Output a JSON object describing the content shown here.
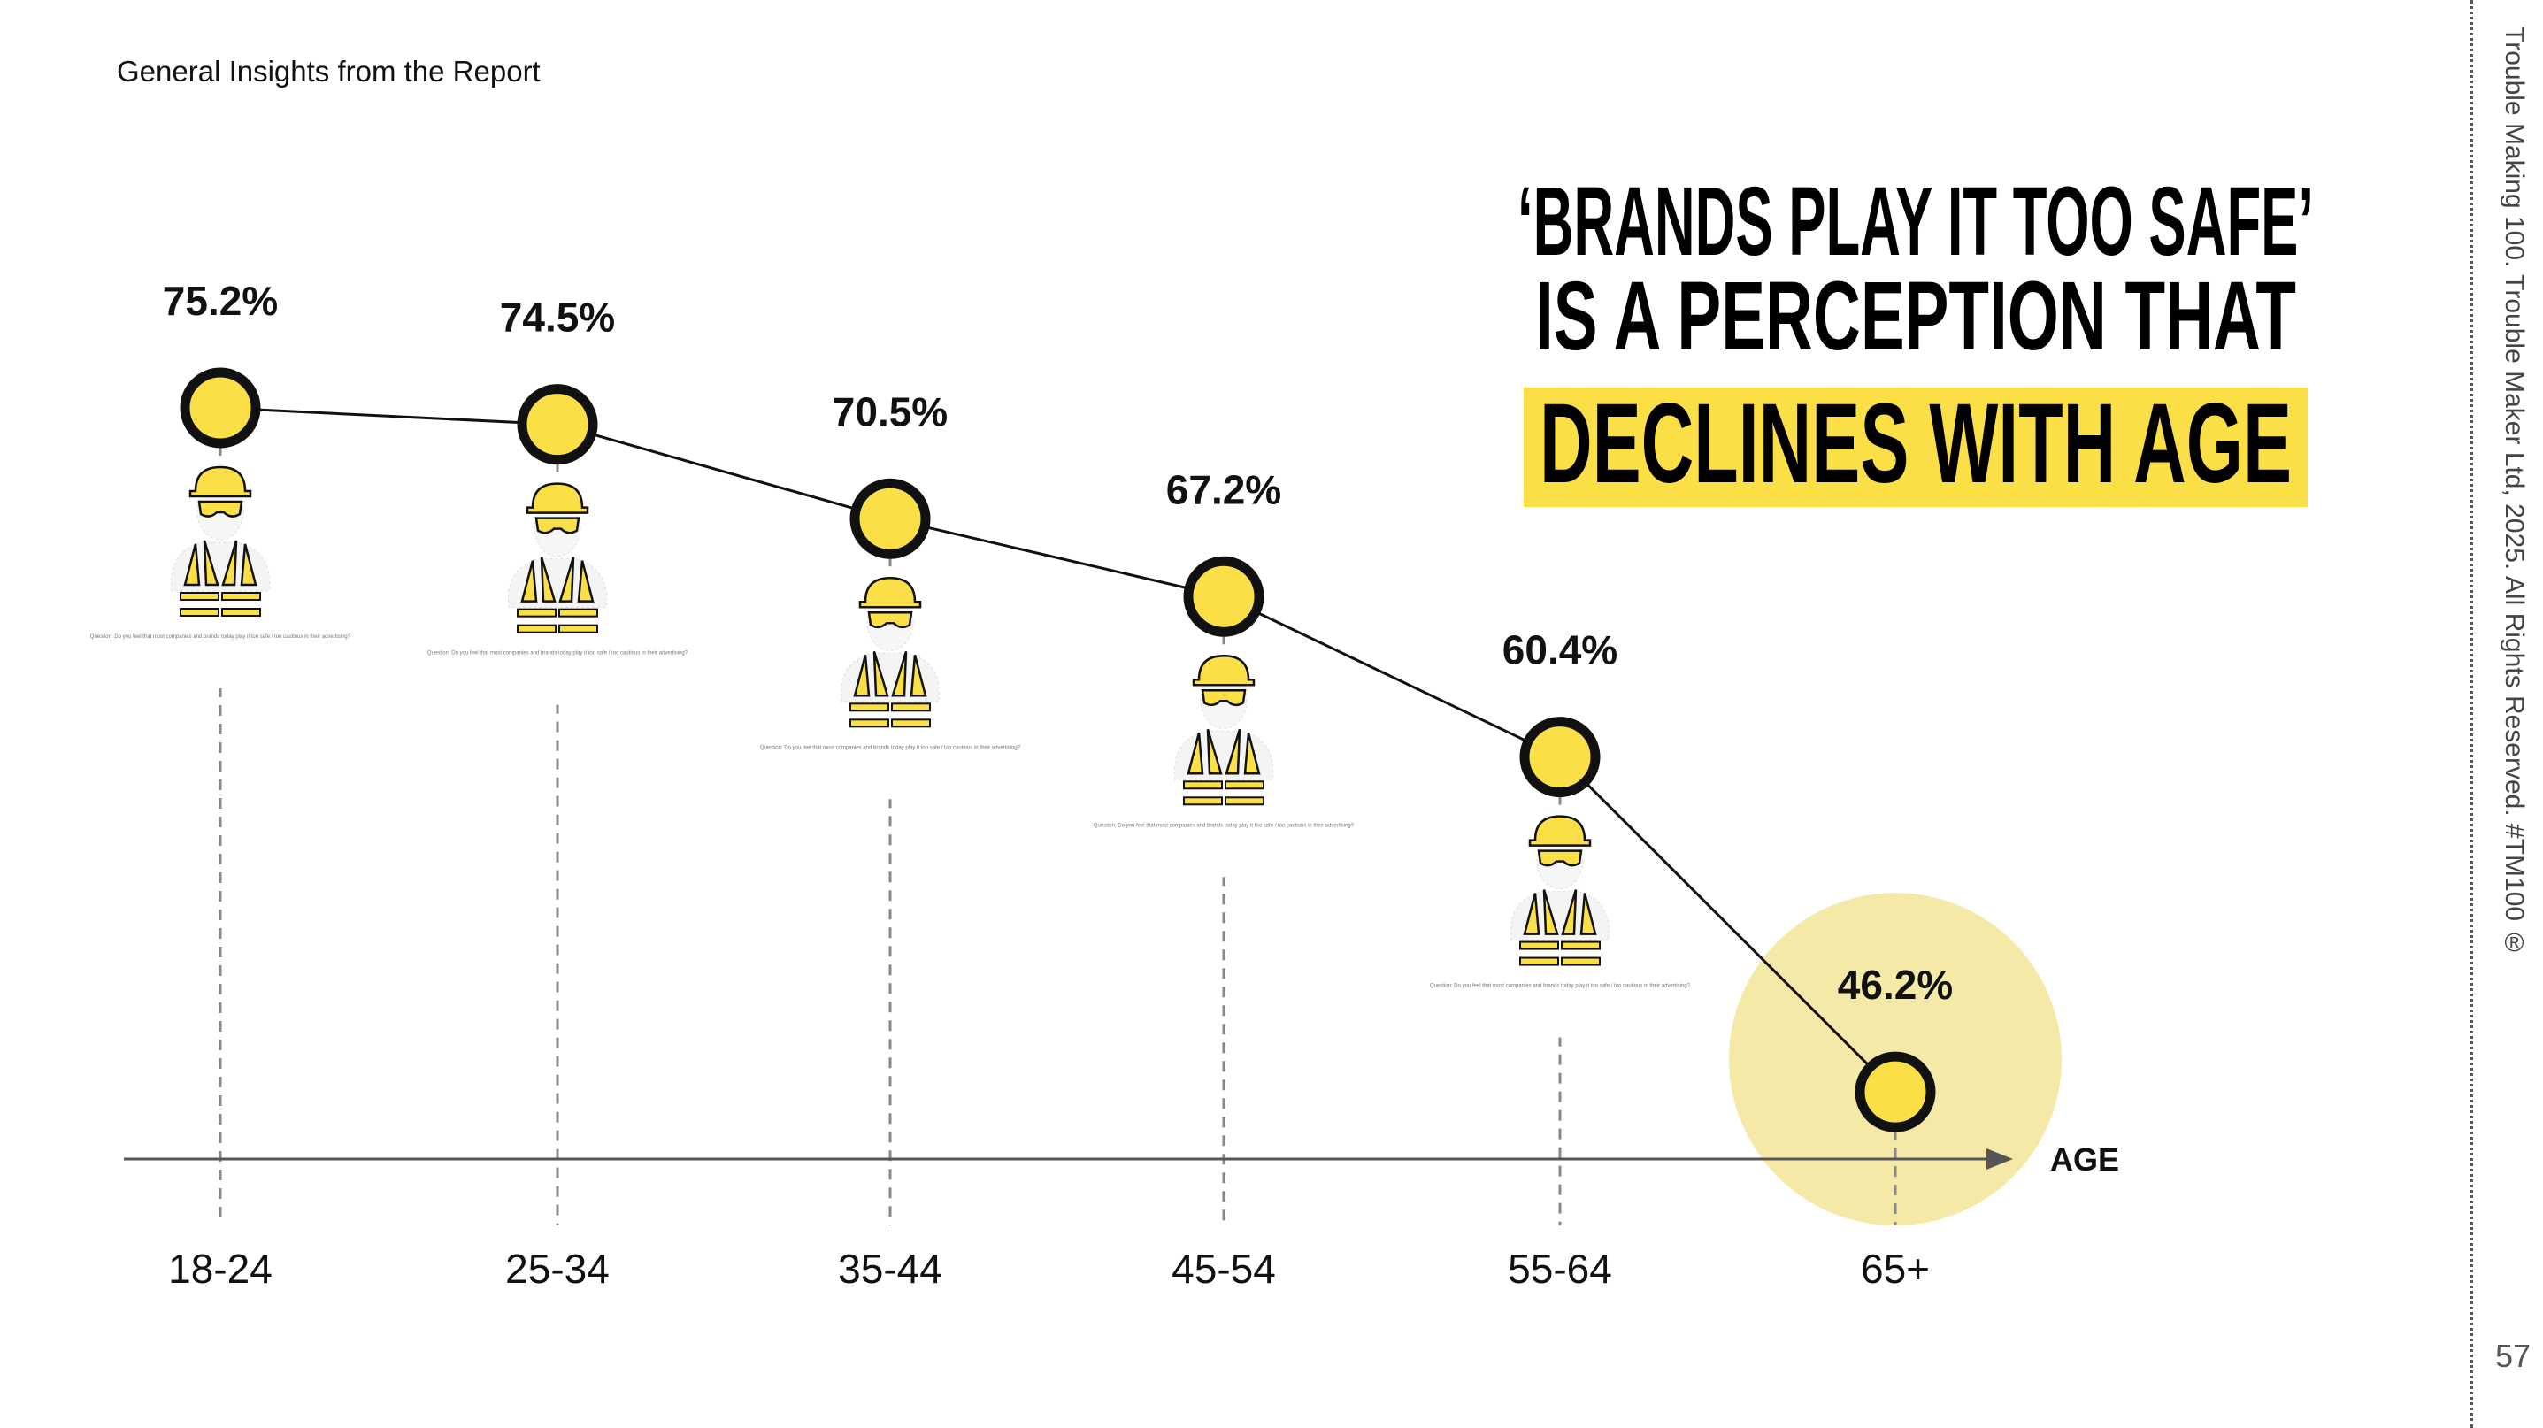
{
  "header": {
    "title": "General Insights from the Report"
  },
  "headline": {
    "line1": "‘BRANDS PLAY IT TOO SAFE’",
    "line2": "IS A PERCEPTION THAT",
    "line3": "DECLINES WITH AGE",
    "highlight_color": "#fadf47"
  },
  "footer": {
    "copyright": "Trouble Making 100. Trouble Maker Ltd, 2025. All Rights Reserved. #TM100  ®",
    "page_number": "57"
  },
  "worker_caption": "Question: Do you feel that most companies and brands today play it too safe / too cautious in their advertising?",
  "chart_data": {
    "type": "line",
    "categories": [
      "18-24",
      "25-34",
      "35-44",
      "45-54",
      "55-64",
      "65+"
    ],
    "values": [
      75.2,
      74.5,
      70.5,
      67.2,
      60.4,
      46.2
    ],
    "data_labels": [
      "75.2%",
      "74.5%",
      "70.5%",
      "67.2%",
      "60.4%",
      "46.2%"
    ],
    "xlabel": "AGE",
    "ylabel": "",
    "grid": false,
    "highlighted_category": "65+",
    "colors": {
      "marker_fill": "#fadf47",
      "marker_stroke": "#111111",
      "highlight": "#f5e9a8",
      "line": "#111111"
    }
  }
}
